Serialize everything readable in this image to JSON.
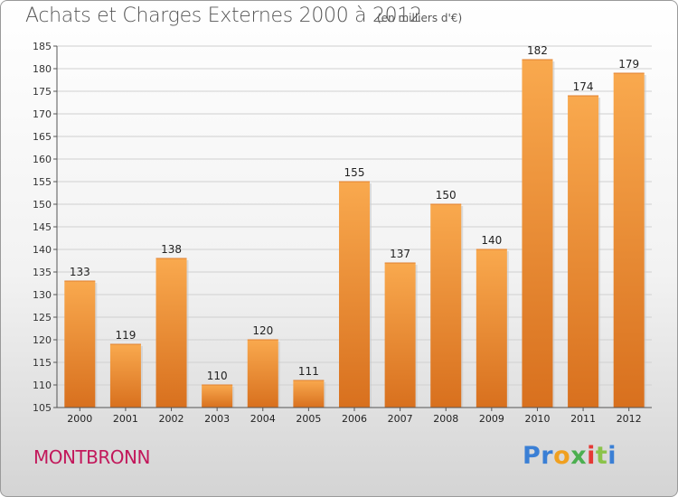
{
  "header": {
    "title": "Achats et Charges Externes 2000 à 2012",
    "unit": "(en milliers d'€)"
  },
  "commune": "MONTBRONN",
  "brand": {
    "logo_text": "Proxiti",
    "letters": [
      {
        "ch": "P",
        "color": "#3a7fd5"
      },
      {
        "ch": "r",
        "color": "#3a7fd5"
      },
      {
        "ch": "o",
        "color": "#f0a020"
      },
      {
        "ch": "x",
        "color": "#4caf50"
      },
      {
        "ch": "i",
        "color": "#e53935"
      },
      {
        "ch": "t",
        "color": "#8bc34a"
      },
      {
        "ch": "i",
        "color": "#3a7fd5"
      }
    ]
  },
  "colors": {
    "bar_light": "#f9a94e",
    "bar_dark": "#d8701e",
    "grid": "#d0d0d0",
    "axis": "#555555"
  },
  "chart_data": {
    "type": "bar",
    "categories": [
      "2000",
      "2001",
      "2002",
      "2003",
      "2004",
      "2005",
      "2006",
      "2007",
      "2008",
      "2009",
      "2010",
      "2011",
      "2012"
    ],
    "values": [
      133,
      119,
      138,
      110,
      120,
      111,
      155,
      137,
      150,
      140,
      182,
      174,
      179
    ],
    "ylim": [
      105,
      185
    ],
    "yticks": [
      105,
      110,
      115,
      120,
      125,
      130,
      135,
      140,
      145,
      150,
      155,
      160,
      165,
      170,
      175,
      180,
      185
    ],
    "grid": true
  }
}
